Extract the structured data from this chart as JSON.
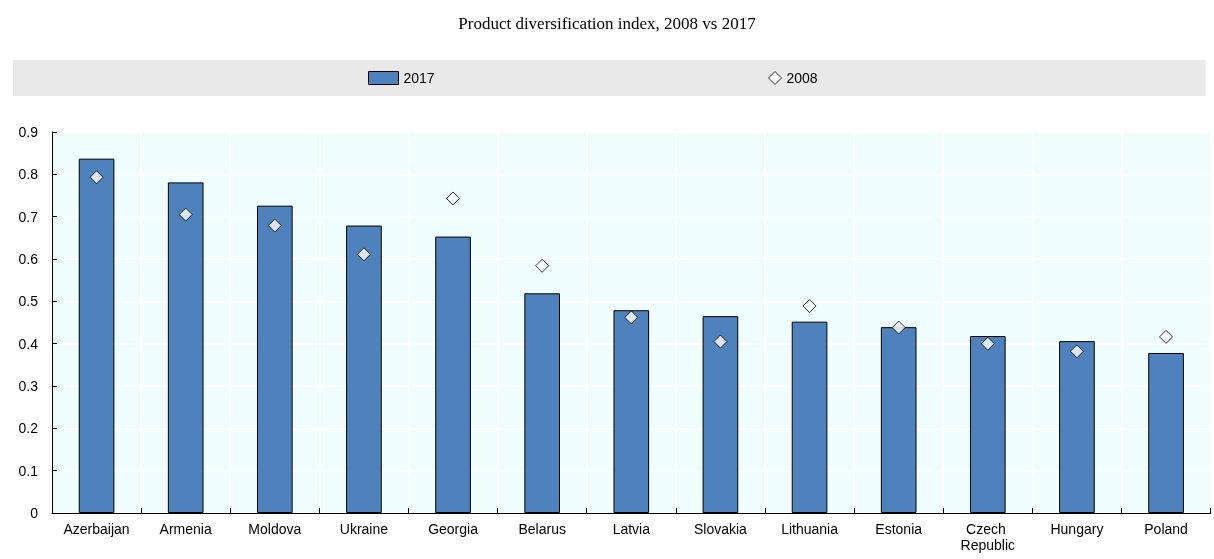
{
  "chart_data": {
    "type": "bar",
    "title": "Product diversification index, 2008 vs 2017",
    "categories": [
      "Azerbaijan",
      "Armenia",
      "Moldova",
      "Ukraine",
      "Georgia",
      "Belarus",
      "Latvia",
      "Slovakia",
      "Lithuania",
      "Estonia",
      "Czech Republic",
      "Hungary",
      "Poland"
    ],
    "series": [
      {
        "name": "2017",
        "type": "bar",
        "color": "#4f81bd",
        "values": [
          0.837,
          0.781,
          0.726,
          0.679,
          0.653,
          0.519,
          0.479,
          0.465,
          0.452,
          0.439,
          0.418,
          0.406,
          0.378
        ]
      },
      {
        "name": "2008",
        "type": "scatter",
        "marker": "diamond",
        "color": "#ffffff",
        "x": [
          "Azerbaijan",
          "Armenia",
          "Moldova",
          "Ukraine",
          "Georgia",
          "Belarus",
          "Latvia",
          "Slovakia",
          "Lithuania",
          "Estonia",
          "Czech Republic",
          "Hungary",
          "Poland"
        ],
        "values": [
          0.793,
          0.705,
          0.679,
          0.611,
          0.743,
          0.584,
          0.462,
          0.405,
          0.489,
          0.438,
          0.4,
          0.382,
          0.416
        ]
      }
    ],
    "ylim": [
      0,
      0.9
    ],
    "yticks": [
      0,
      0.1,
      0.2,
      0.3,
      0.4,
      0.5,
      0.6,
      0.7,
      0.8,
      0.9
    ],
    "grid": true,
    "legend": "top"
  }
}
